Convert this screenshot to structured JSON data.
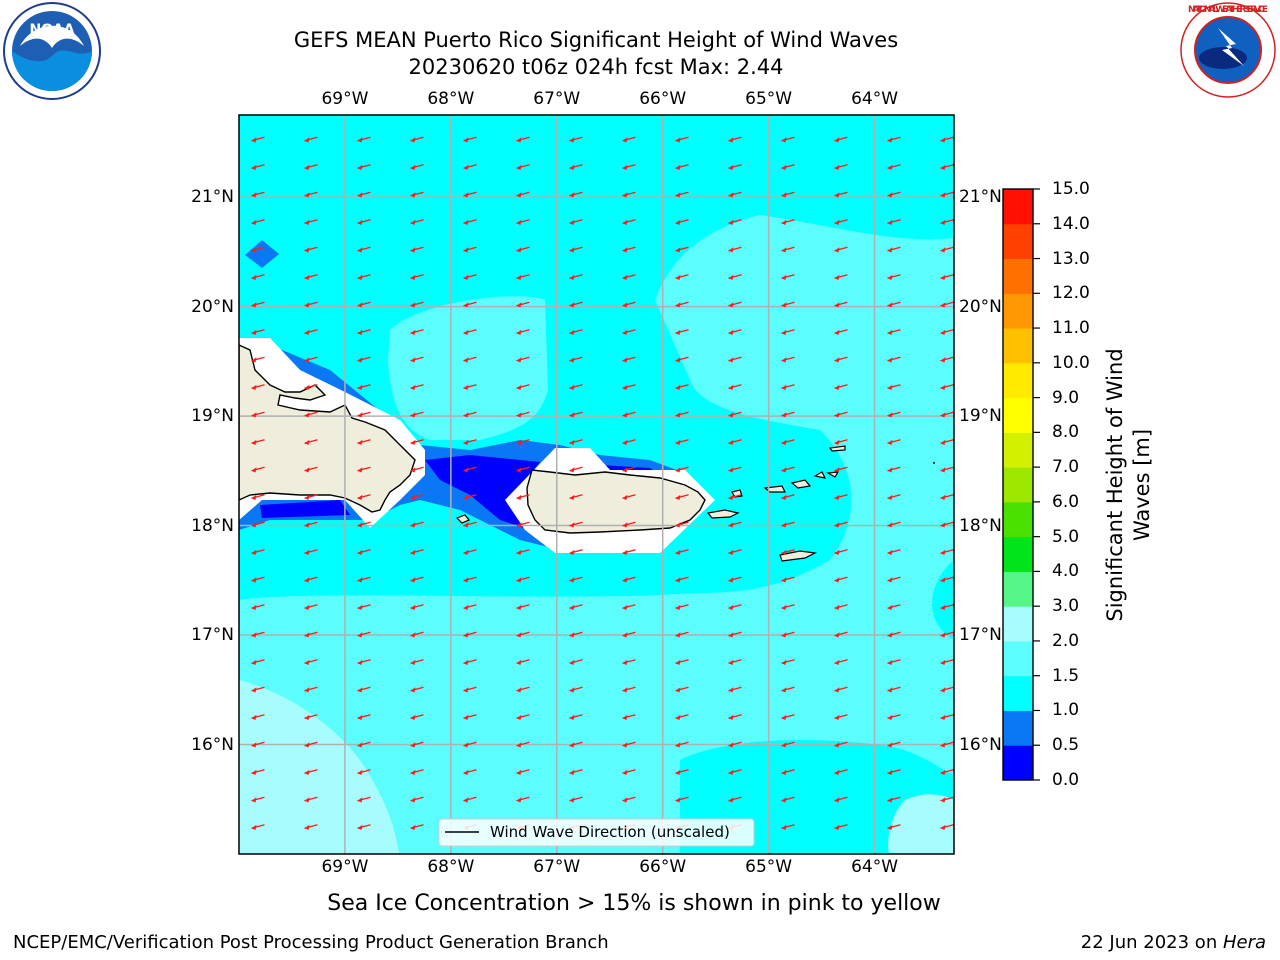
{
  "title": {
    "line1": "GEFS MEAN Puerto Rico Significant Height of Wind Waves",
    "line2": "20230620 t06z 024h fcst   Max: 2.44"
  },
  "logos": {
    "noaa": {
      "text": "NOAA",
      "icon": "noaa-logo-icon"
    },
    "nws": {
      "text": "NATIONAL WEATHER SERVICE",
      "icon": "nws-logo-icon"
    }
  },
  "map": {
    "lon_range": [
      -70.0,
      -63.25
    ],
    "lat_range": [
      15.0,
      21.75
    ],
    "lon_ticks": [
      {
        "value": -69,
        "label": "69°W"
      },
      {
        "value": -68,
        "label": "68°W"
      },
      {
        "value": -67,
        "label": "67°W"
      },
      {
        "value": -66,
        "label": "66°W"
      },
      {
        "value": -65,
        "label": "65°W"
      },
      {
        "value": -64,
        "label": "64°W"
      }
    ],
    "lat_ticks": [
      {
        "value": 21,
        "label": "21°N"
      },
      {
        "value": 20,
        "label": "20°N"
      },
      {
        "value": 19,
        "label": "19°N"
      },
      {
        "value": 18,
        "label": "18°N"
      },
      {
        "value": 17,
        "label": "17°N"
      },
      {
        "value": 16,
        "label": "16°N"
      }
    ],
    "grid": true,
    "ocean_color": "#00ffff",
    "land_color": "#efeddc",
    "arrow_color": "#ff1a1a",
    "legend_label": "Wind Wave Direction (unscaled)",
    "legend_position": "bottom-center",
    "bottom_note": "Sea Ice Concentration > 15% is shown in pink to yellow"
  },
  "colorbar": {
    "label": "Significant Height of Wind Waves [m]",
    "label_line1": "Significant Height of Wind",
    "label_line2": "Waves [m]",
    "levels": [
      {
        "value": "0.0",
        "color": "#0000ff"
      },
      {
        "value": "0.5",
        "color": "#0a78f5"
      },
      {
        "value": "1.0",
        "color": "#00ffff"
      },
      {
        "value": "1.5",
        "color": "#5cfdfd"
      },
      {
        "value": "2.0",
        "color": "#a7fdfd"
      },
      {
        "value": "3.0",
        "color": "#55f588"
      },
      {
        "value": "4.0",
        "color": "#00e51a"
      },
      {
        "value": "5.0",
        "color": "#4ae000"
      },
      {
        "value": "6.0",
        "color": "#9ee800"
      },
      {
        "value": "7.0",
        "color": "#d2f000"
      },
      {
        "value": "8.0",
        "color": "#ffff00"
      },
      {
        "value": "9.0",
        "color": "#ffea00"
      },
      {
        "value": "10.0",
        "color": "#ffc000"
      },
      {
        "value": "11.0",
        "color": "#ff9800"
      },
      {
        "value": "12.0",
        "color": "#ff7000"
      },
      {
        "value": "13.0",
        "color": "#ff4000"
      },
      {
        "value": "14.0",
        "color": "#ff1000"
      },
      {
        "value": "15.0",
        "color": ""
      }
    ]
  },
  "footer": {
    "left": "NCEP/EMC/Verification Post Processing Product Generation Branch",
    "right_date": "22 Jun 2023 on ",
    "right_host": "Hera"
  }
}
